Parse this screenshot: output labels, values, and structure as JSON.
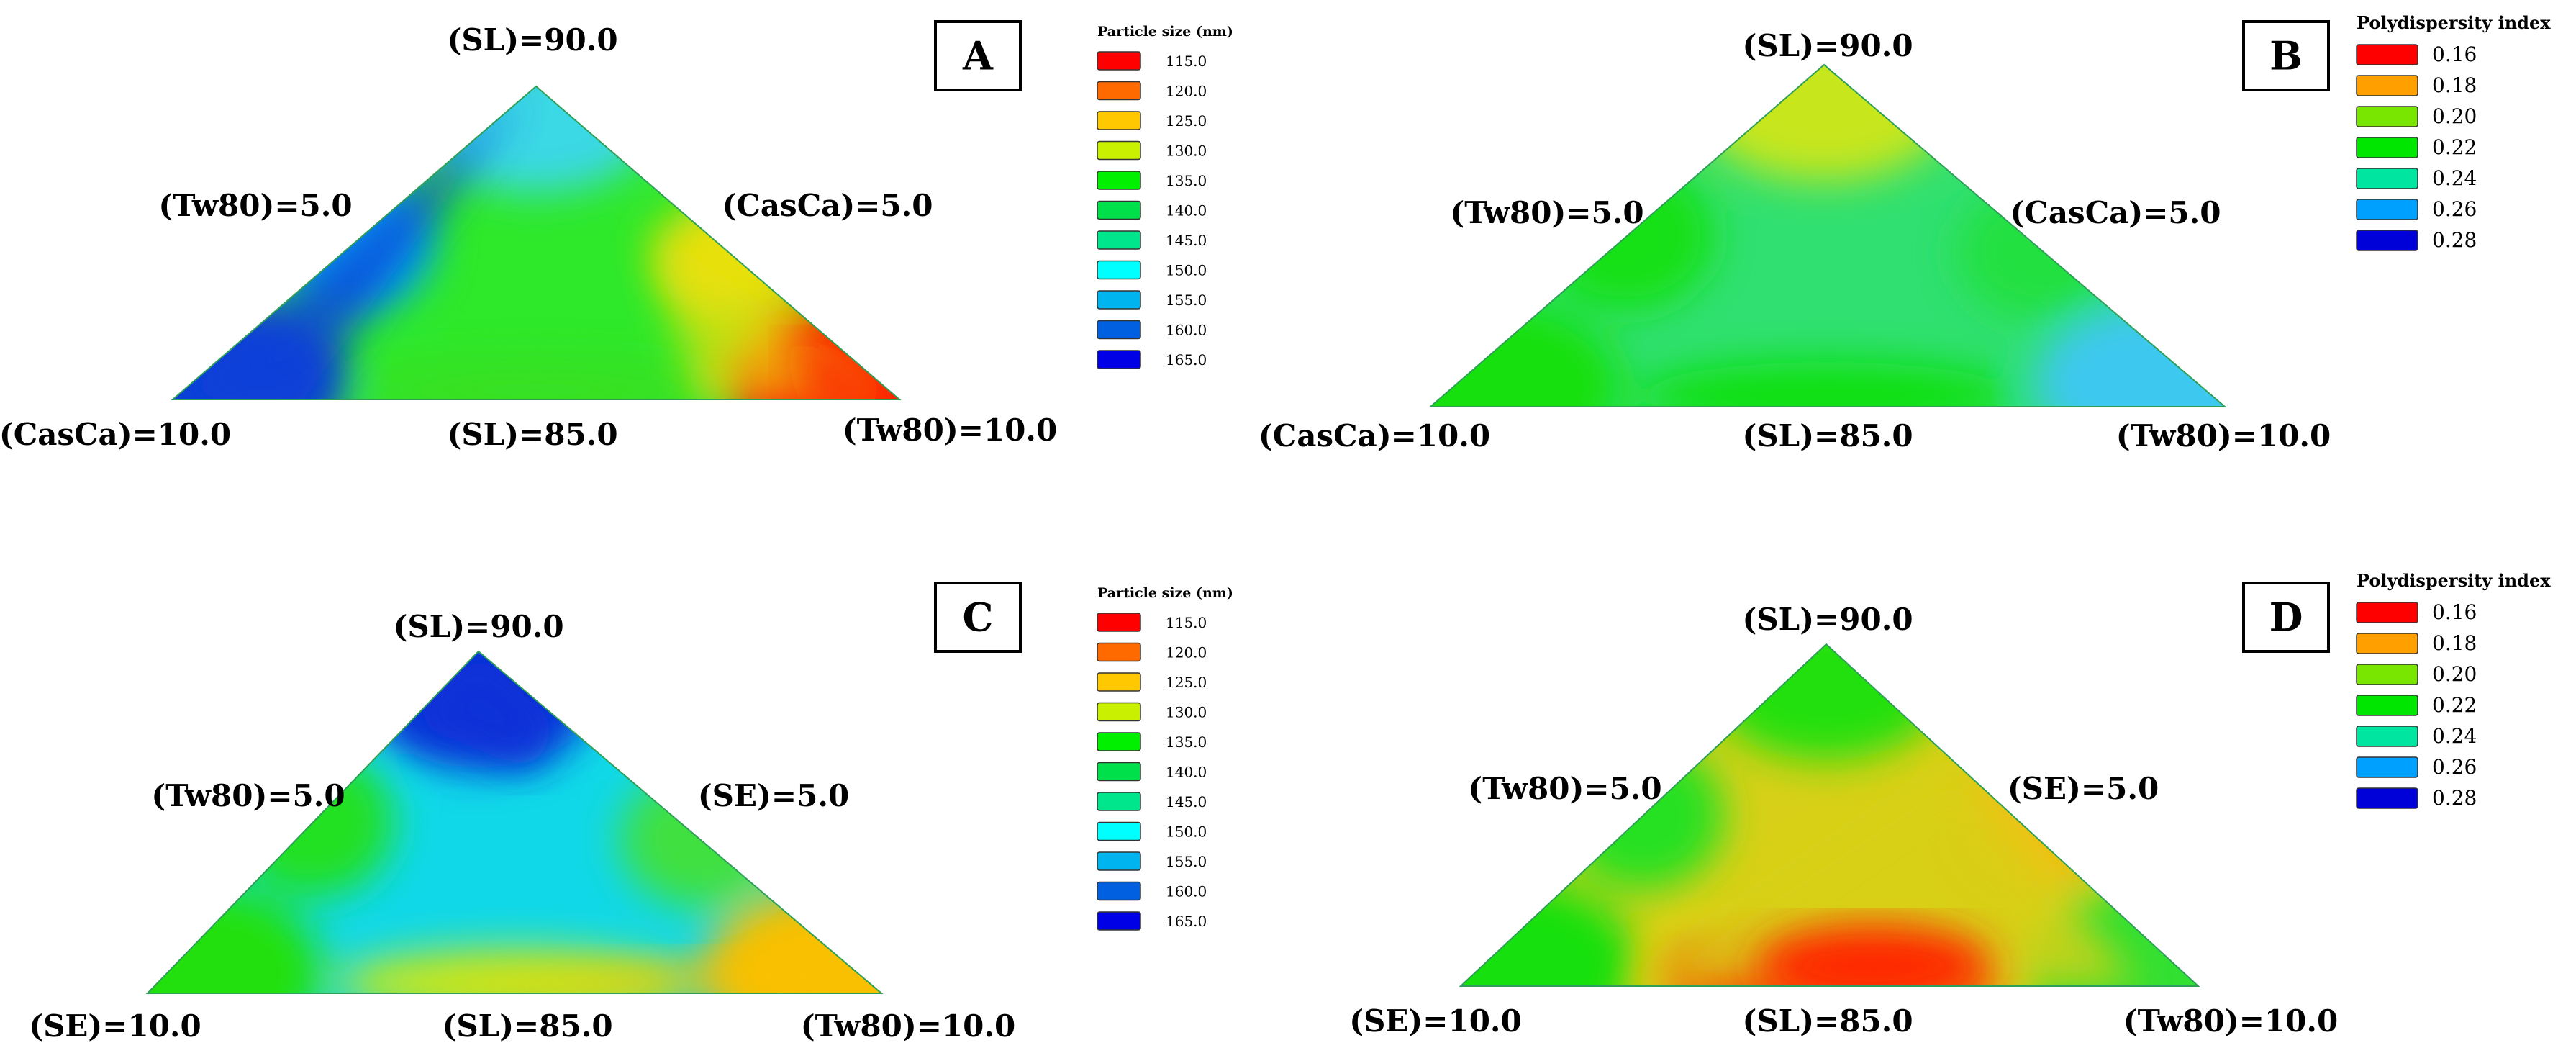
{
  "chart_data": [
    {
      "type": "heatmap",
      "panel": "A",
      "vertices": {
        "top": "(SL)=90.0",
        "left": "(CasCa)=10.0",
        "right": "(Tw80)=10.0"
      },
      "edges": {
        "left": "(Tw80)=5.0",
        "right": "(CasCa)=5.0",
        "bottom": "(SL)=85.0"
      },
      "legend": {
        "title": "Particle size (nm)",
        "entries": [
          {
            "label": "115.0",
            "color": "#ff0000"
          },
          {
            "label": "120.0",
            "color": "#ff6a00"
          },
          {
            "label": "125.0",
            "color": "#ffc800"
          },
          {
            "label": "130.0",
            "color": "#c8f000"
          },
          {
            "label": "135.0",
            "color": "#00f000"
          },
          {
            "label": "140.0",
            "color": "#00e04a"
          },
          {
            "label": "145.0",
            "color": "#00e68c"
          },
          {
            "label": "150.0",
            "color": "#00ffff"
          },
          {
            "label": "155.0",
            "color": "#00b4f0"
          },
          {
            "label": "160.0",
            "color": "#0060e0"
          },
          {
            "label": "165.0",
            "color": "#0000e6"
          }
        ]
      },
      "fill": {
        "top": "#3ad8e6",
        "left": "#0a40d8",
        "right": "#ff1800",
        "bottom": "#38e020",
        "right_edge": "#e8e010",
        "left_edge": "#00a8f0",
        "center": "#2ee82a"
      }
    },
    {
      "type": "heatmap",
      "panel": "B",
      "vertices": {
        "top": "(SL)=90.0",
        "left": "(CasCa)=10.0",
        "right": "(Tw80)=10.0"
      },
      "edges": {
        "left": "(Tw80)=5.0",
        "right": "(CasCa)=5.0",
        "bottom": "(SL)=85.0"
      },
      "legend": {
        "title": "Polydispersity index",
        "entries": [
          {
            "label": "0.16",
            "color": "#ff0000"
          },
          {
            "label": "0.18",
            "color": "#ffa000"
          },
          {
            "label": "0.20",
            "color": "#78e600"
          },
          {
            "label": "0.22",
            "color": "#00e600"
          },
          {
            "label": "0.24",
            "color": "#00e6a0"
          },
          {
            "label": "0.26",
            "color": "#00a0ff"
          },
          {
            "label": "0.28",
            "color": "#0000d8"
          }
        ]
      },
      "fill": {
        "top": "#c8e61a",
        "left": "#16e010",
        "right": "#3ec8f0",
        "bottom": "#10e010",
        "right_edge": "#20e040",
        "left_edge": "#18e014",
        "center": "#30e070"
      }
    },
    {
      "type": "heatmap",
      "panel": "C",
      "vertices": {
        "top": "(SL)=90.0",
        "left": "(SE)=10.0",
        "right": "(Tw80)=10.0"
      },
      "edges": {
        "left": "(Tw80)=5.0",
        "right": "(SE)=5.0",
        "bottom": "(SL)=85.0"
      },
      "legend": {
        "title": "Particle size (nm)",
        "entries": [
          {
            "label": "115.0",
            "color": "#ff0000"
          },
          {
            "label": "120.0",
            "color": "#ff6a00"
          },
          {
            "label": "125.0",
            "color": "#ffc800"
          },
          {
            "label": "130.0",
            "color": "#c8f000"
          },
          {
            "label": "135.0",
            "color": "#00f000"
          },
          {
            "label": "140.0",
            "color": "#00e04a"
          },
          {
            "label": "145.0",
            "color": "#00e68c"
          },
          {
            "label": "150.0",
            "color": "#00ffff"
          },
          {
            "label": "155.0",
            "color": "#00b4f0"
          },
          {
            "label": "160.0",
            "color": "#0060e0"
          },
          {
            "label": "165.0",
            "color": "#0000e6"
          }
        ]
      },
      "fill": {
        "top": "#0a30d8",
        "left": "#20e010",
        "right": "#f8c000",
        "bottom": "#c8e814",
        "right_edge": "#40e040",
        "left_edge": "#24e020",
        "center": "#10d8e8"
      }
    },
    {
      "type": "heatmap",
      "panel": "D",
      "vertices": {
        "top": "(SL)=90.0",
        "left": "(SE)=10.0",
        "right": "(Tw80)=10.0"
      },
      "edges": {
        "left": "(Tw80)=5.0",
        "right": "(SE)=5.0",
        "bottom": "(SL)=85.0"
      },
      "legend": {
        "title": "Polydispersity index",
        "entries": [
          {
            "label": "0.16",
            "color": "#ff0000"
          },
          {
            "label": "0.18",
            "color": "#ffa000"
          },
          {
            "label": "0.20",
            "color": "#78e600"
          },
          {
            "label": "0.22",
            "color": "#00e600"
          },
          {
            "label": "0.24",
            "color": "#00e6a0"
          },
          {
            "label": "0.26",
            "color": "#00a0ff"
          },
          {
            "label": "0.28",
            "color": "#0000d8"
          }
        ]
      },
      "fill": {
        "top": "#20e010",
        "left": "#18e010",
        "right": "#30e030",
        "bottom": "#ff2800",
        "right_edge": "#f0c018",
        "left_edge": "#28e020",
        "center": "#d8d018"
      }
    }
  ]
}
